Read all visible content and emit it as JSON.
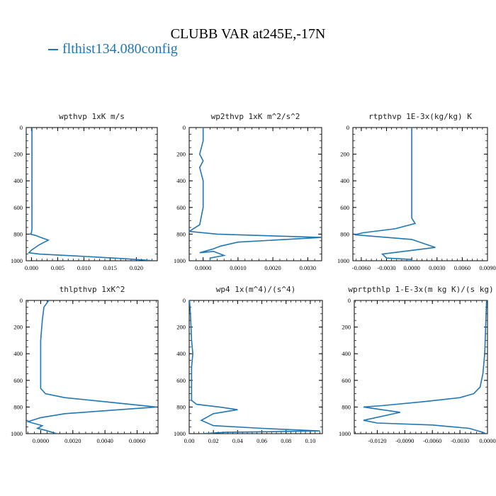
{
  "figure": {
    "title": "CLUBB VAR at245E,-17N",
    "legend": {
      "label": "flthist134.080config",
      "color": "#1f77b4"
    }
  },
  "chart_data": [
    {
      "type": "line",
      "title": "wpthvp   1xK m/s",
      "xlim": [
        -0.001,
        0.024
      ],
      "ylim": [
        1000,
        0
      ],
      "xticks": [
        0.0,
        0.005,
        0.01,
        0.015,
        0.02
      ],
      "xticklabels": [
        "0.000",
        "0.005",
        "0.010",
        "0.015",
        "0.020"
      ],
      "yticks": [
        0,
        200,
        400,
        600,
        800,
        1000
      ],
      "series": [
        {
          "x": [
            0.0001,
            0.0001,
            0.0001,
            0.0001,
            0.0001,
            0.0001,
            0.0001,
            0.0001,
            0.0001,
            0.0,
            -0.0002,
            0.0008,
            0.0018,
            0.0032,
            0.0015,
            0.0,
            -0.0005,
            0.0015,
            0.009,
            0.018,
            0.0235
          ],
          "y": [
            0,
            100,
            200,
            300,
            400,
            500,
            600,
            700,
            760,
            790,
            800,
            810,
            825,
            845,
            880,
            920,
            940,
            950,
            965,
            985,
            1000
          ]
        }
      ]
    },
    {
      "type": "line",
      "title": "wp2thvp   1xK m^2/s^2",
      "xlim": [
        -0.0004,
        0.0034
      ],
      "ylim": [
        1000,
        0
      ],
      "xticks": [
        0.0,
        0.001,
        0.002,
        0.003
      ],
      "xticklabels": [
        "0.0000",
        "0.0010",
        "0.0020",
        "0.0030"
      ],
      "yticks": [
        0,
        200,
        400,
        600,
        800,
        1000
      ],
      "series": [
        {
          "x": [
            0.0,
            0.0,
            -0.0001,
            0.0,
            -0.0001,
            0.0,
            0.0,
            0.0,
            -0.0001,
            -0.0004,
            0.0004,
            0.0034,
            0.001,
            0.0005,
            0.0003,
            -0.0001,
            0.0003,
            0.0006,
            0.0002,
            0.0002
          ],
          "y": [
            0,
            100,
            200,
            250,
            300,
            400,
            500,
            600,
            730,
            780,
            800,
            825,
            860,
            890,
            910,
            940,
            930,
            960,
            980,
            1000
          ]
        }
      ]
    },
    {
      "type": "line",
      "title": "rtpthvp   1E-3x(kg/kg) K",
      "xlim": [
        -0.007,
        0.009
      ],
      "ylim": [
        1000,
        0
      ],
      "xticks": [
        -0.006,
        -0.003,
        0.0,
        0.003,
        0.006,
        0.009
      ],
      "xticklabels": [
        "-0.0060",
        "-0.0030",
        "0.0000",
        "0.0030",
        "0.0060",
        "0.0090"
      ],
      "yticks": [
        0,
        200,
        400,
        600,
        800,
        1000
      ],
      "series": [
        {
          "x": [
            0.0,
            0.0,
            0.0,
            0.0,
            0.0,
            0.0002,
            0.0004,
            -0.002,
            -0.0058,
            -0.0068,
            0.0,
            0.0028,
            -0.001,
            -0.0035,
            -0.003,
            0.0,
            0.0
          ],
          "y": [
            0,
            200,
            400,
            600,
            680,
            700,
            720,
            760,
            790,
            805,
            840,
            900,
            930,
            950,
            980,
            990,
            1000
          ]
        }
      ]
    },
    {
      "type": "line",
      "title": "thlpthvp   1xK^2",
      "xlim": [
        -0.0009,
        0.0073
      ],
      "ylim": [
        1000,
        0
      ],
      "xticks": [
        0.0,
        0.002,
        0.004,
        0.006
      ],
      "xticklabels": [
        "0.0000",
        "0.0020",
        "0.0040",
        "0.0060"
      ],
      "yticks": [
        0,
        200,
        400,
        600,
        800,
        1000
      ],
      "series": [
        {
          "x": [
            0.0005,
            0.0002,
            0.0001,
            0.0,
            0.0,
            0.0,
            0.0,
            0.0003,
            0.0015,
            0.004,
            0.0072,
            0.0015,
            0.0,
            -0.0008,
            0.0001,
            -0.0002,
            0.0003,
            0.001
          ],
          "y": [
            0,
            50,
            150,
            300,
            450,
            600,
            660,
            700,
            730,
            760,
            800,
            850,
            880,
            910,
            940,
            960,
            975,
            1000
          ]
        }
      ]
    },
    {
      "type": "line",
      "title": "wp4   1x(m^4)/(s^4)",
      "xlim": [
        0.0,
        0.11
      ],
      "ylim": [
        1000,
        0
      ],
      "xticks": [
        0.0,
        0.02,
        0.04,
        0.06,
        0.08,
        0.1
      ],
      "xticklabels": [
        "0.00",
        "0.02",
        "0.04",
        "0.06",
        "0.08",
        "0.10"
      ],
      "yticks": [
        0,
        200,
        400,
        600,
        800,
        1000
      ],
      "series": [
        {
          "x": [
            0.0003,
            0.001,
            0.0015,
            0.002,
            0.003,
            0.002,
            0.002,
            0.002,
            0.002,
            0.006,
            0.025,
            0.04,
            0.02,
            0.01,
            0.02,
            0.06,
            0.108,
            0.03,
            0.01
          ],
          "y": [
            0,
            100,
            200,
            300,
            400,
            500,
            600,
            700,
            750,
            780,
            800,
            820,
            850,
            900,
            940,
            960,
            980,
            990,
            1000
          ]
        }
      ]
    },
    {
      "type": "line",
      "title": "wprtpthlp   1-E-3x(m kg K)/(s kg)",
      "xlim": [
        -0.0145,
        0.0
      ],
      "ylim": [
        1000,
        0
      ],
      "xticks": [
        -0.012,
        -0.009,
        -0.006,
        -0.003,
        0.0
      ],
      "xticklabels": [
        "-0.0120",
        "-0.0090",
        "-0.0060",
        "-0.0030",
        "0.0000"
      ],
      "yticks": [
        0,
        200,
        400,
        600,
        800,
        1000
      ],
      "series": [
        {
          "x": [
            -0.0001,
            -0.0002,
            -0.0003,
            -0.0005,
            -0.0008,
            -0.0015,
            -0.003,
            -0.007,
            -0.0115,
            -0.0135,
            -0.0095,
            -0.0135,
            -0.012,
            -0.006,
            -0.002,
            -0.0005,
            -0.0002
          ],
          "y": [
            0,
            200,
            400,
            550,
            650,
            700,
            730,
            760,
            790,
            800,
            840,
            900,
            920,
            935,
            960,
            990,
            1000
          ]
        }
      ]
    }
  ]
}
